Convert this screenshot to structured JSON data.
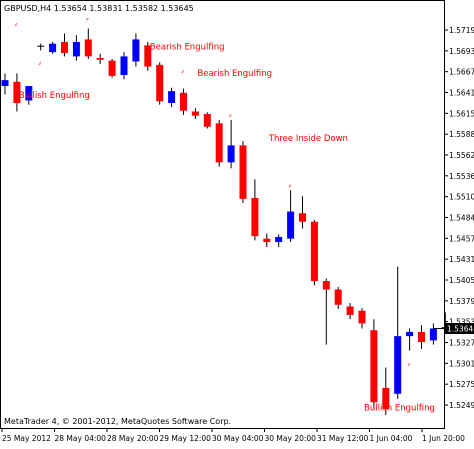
{
  "header": {
    "text": "GBPUSD,H4  1.53654 1.53831 1.53582 1.53645"
  },
  "footer": {
    "copyright": "MetaTrader 4, © 2001-2012, MetaQuotes Software Corp."
  },
  "current_price_label": "1.53645",
  "colors": {
    "bull": "#0000ff",
    "bear": "#ff0000",
    "wick": "#000000",
    "annotation": "#ff0000",
    "background": "#ffffff"
  },
  "annotations": [
    {
      "text": "Bullish Engulfing",
      "candle": 1,
      "price": 1.5636
    },
    {
      "text": "Bearish Engulfing",
      "candle": 12,
      "price": 1.5693
    },
    {
      "text": "Bearish Engulfing",
      "candle": 16,
      "price": 1.5662
    },
    {
      "text": "Three Inside Down",
      "candle": 22,
      "price": 1.5585
    },
    {
      "text": "Bullish Engulfing",
      "candle": 30,
      "price": 1.5267
    }
  ],
  "pattern_markers": [
    {
      "candle": 1,
      "price": 1.572
    },
    {
      "candle": 3,
      "price": 1.5674
    },
    {
      "candle": 7,
      "price": 1.5727
    },
    {
      "candle": 12,
      "price": 1.5687
    },
    {
      "candle": 15,
      "price": 1.5665
    },
    {
      "candle": 19,
      "price": 1.5613
    },
    {
      "candle": 24,
      "price": 1.553
    },
    {
      "candle": 34,
      "price": 1.5319
    }
  ],
  "chart_data": {
    "type": "candlestick",
    "symbol": "GBPUSD",
    "timeframe": "H4",
    "ohlc_header": {
      "open": 1.53654,
      "high": 1.53831,
      "low": 1.53582,
      "close": 1.53645
    },
    "y_ticks": [
      "1.57195",
      "1.56935",
      "1.56675",
      "1.56415",
      "1.56155",
      "1.55885",
      "1.55625",
      "1.55365",
      "1.55105",
      "1.54845",
      "1.54575",
      "1.54315",
      "1.54055",
      "1.53795",
      "1.53535",
      "1.53275",
      "1.53015",
      "1.52755",
      "1.52490"
    ],
    "x_ticks": [
      "25 May 2012",
      "28 May 04:00",
      "28 May 20:00",
      "29 May 12:00",
      "30 May 04:00",
      "30 May 20:00",
      "31 May 12:00",
      "1 Jun 04:00",
      "1 Jun 20:00"
    ],
    "ylim": [
      1.5249,
      1.5735
    ],
    "candles": [
      {
        "o": 1.565,
        "h": 1.5665,
        "l": 1.564,
        "c": 1.5657
      },
      {
        "o": 1.5655,
        "h": 1.5665,
        "l": 1.562,
        "c": 1.563
      },
      {
        "o": 1.5633,
        "h": 1.565,
        "l": 1.5628,
        "c": 1.565
      },
      {
        "o": 1.5697,
        "h": 1.57,
        "l": 1.5692,
        "c": 1.5696
      },
      {
        "o": 1.569,
        "h": 1.5702,
        "l": 1.5688,
        "c": 1.57
      },
      {
        "o": 1.5702,
        "h": 1.5712,
        "l": 1.5685,
        "c": 1.5689
      },
      {
        "o": 1.5685,
        "h": 1.571,
        "l": 1.568,
        "c": 1.5702
      },
      {
        "o": 1.5705,
        "h": 1.5718,
        "l": 1.5682,
        "c": 1.5685
      },
      {
        "o": 1.5683,
        "h": 1.5688,
        "l": 1.5676,
        "c": 1.5681
      },
      {
        "o": 1.568,
        "h": 1.5682,
        "l": 1.566,
        "c": 1.5662
      },
      {
        "o": 1.5663,
        "h": 1.569,
        "l": 1.5658,
        "c": 1.5685
      },
      {
        "o": 1.5679,
        "h": 1.5712,
        "l": 1.5673,
        "c": 1.5705
      },
      {
        "o": 1.5698,
        "h": 1.5702,
        "l": 1.5668,
        "c": 1.5673
      },
      {
        "o": 1.5675,
        "h": 1.5678,
        "l": 1.5628,
        "c": 1.5632
      },
      {
        "o": 1.563,
        "h": 1.5648,
        "l": 1.5625,
        "c": 1.5644
      },
      {
        "o": 1.5642,
        "h": 1.5647,
        "l": 1.5616,
        "c": 1.5621
      },
      {
        "o": 1.562,
        "h": 1.5624,
        "l": 1.5611,
        "c": 1.5615
      },
      {
        "o": 1.5617,
        "h": 1.5619,
        "l": 1.56,
        "c": 1.5602
      },
      {
        "o": 1.5606,
        "h": 1.561,
        "l": 1.5555,
        "c": 1.556
      },
      {
        "o": 1.556,
        "h": 1.561,
        "l": 1.5553,
        "c": 1.558
      },
      {
        "o": 1.558,
        "h": 1.5585,
        "l": 1.5512,
        "c": 1.5517
      },
      {
        "o": 1.5518,
        "h": 1.554,
        "l": 1.5468,
        "c": 1.5473
      },
      {
        "o": 1.547,
        "h": 1.5476,
        "l": 1.546,
        "c": 1.5466
      },
      {
        "o": 1.5466,
        "h": 1.5475,
        "l": 1.546,
        "c": 1.5472
      },
      {
        "o": 1.547,
        "h": 1.5527,
        "l": 1.5466,
        "c": 1.5502
      },
      {
        "o": 1.55,
        "h": 1.552,
        "l": 1.5482,
        "c": 1.549
      },
      {
        "o": 1.549,
        "h": 1.5492,
        "l": 1.5415,
        "c": 1.542
      },
      {
        "o": 1.542,
        "h": 1.5423,
        "l": 1.5345,
        "c": 1.541
      },
      {
        "o": 1.541,
        "h": 1.5413,
        "l": 1.5387,
        "c": 1.5392
      },
      {
        "o": 1.539,
        "h": 1.5394,
        "l": 1.5375,
        "c": 1.538
      },
      {
        "o": 1.5385,
        "h": 1.5388,
        "l": 1.5364,
        "c": 1.537
      },
      {
        "o": 1.5362,
        "h": 1.5375,
        "l": 1.5269,
        "c": 1.5277
      },
      {
        "o": 1.5294,
        "h": 1.5318,
        "l": 1.5262,
        "c": 1.5269
      },
      {
        "o": 1.5287,
        "h": 1.5437,
        "l": 1.5281,
        "c": 1.5355
      },
      {
        "o": 1.5355,
        "h": 1.5364,
        "l": 1.5338,
        "c": 1.536
      },
      {
        "o": 1.536,
        "h": 1.5368,
        "l": 1.534,
        "c": 1.5348
      },
      {
        "o": 1.535,
        "h": 1.537,
        "l": 1.5345,
        "c": 1.5364
      },
      {
        "o": 1.5365,
        "h": 1.5383,
        "l": 1.5358,
        "c": 1.5364
      }
    ]
  }
}
